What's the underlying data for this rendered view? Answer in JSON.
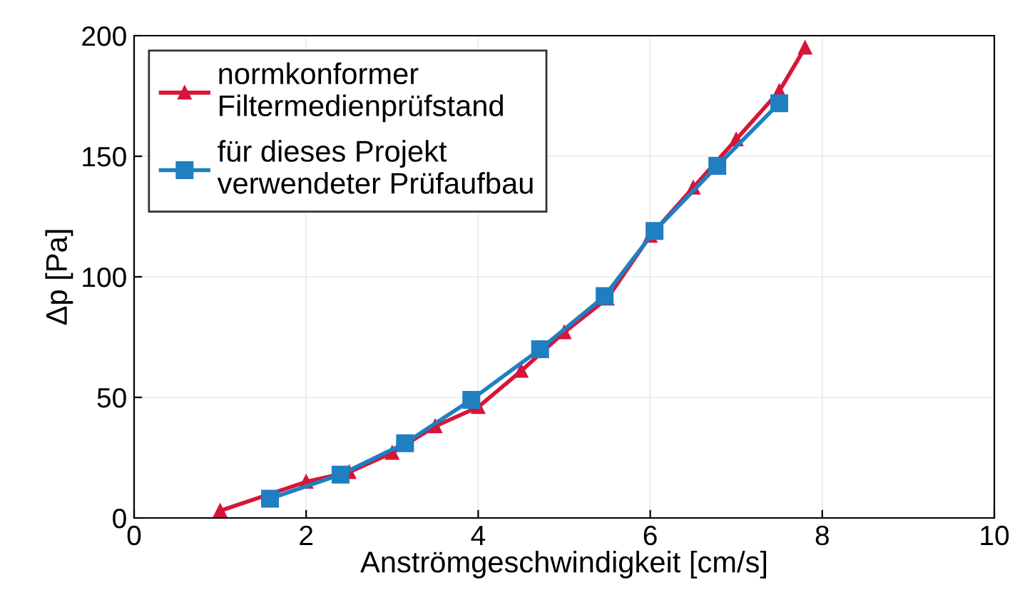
{
  "chart_data": {
    "type": "line",
    "xlabel": "Anströmgeschwindigkeit [cm/s]",
    "ylabel": "Δp [Pa]",
    "xlim": [
      0,
      10
    ],
    "xticks": [
      0,
      2,
      4,
      6,
      8,
      10
    ],
    "ylim": [
      0,
      200
    ],
    "yticks": [
      0,
      50,
      100,
      150,
      200
    ],
    "grid": true,
    "legend": "top left",
    "series": [
      {
        "name": "normkonformer\nFiltermedienprüfstand",
        "color": "#d6163a",
        "marker": "triangle",
        "x": [
          1.0,
          2.0,
          2.5,
          3.0,
          3.5,
          4.0,
          4.5,
          5.0,
          5.5,
          6.0,
          6.5,
          7.0,
          7.5,
          7.8
        ],
        "values": [
          3,
          15,
          19,
          27,
          38,
          46,
          61,
          77,
          91,
          117,
          137,
          157,
          177,
          195
        ]
      },
      {
        "name": "für dieses Projekt\nverwendeter Prüfaufbau",
        "color": "#1f7fc0",
        "marker": "square",
        "x": [
          1.58,
          2.4,
          3.15,
          3.92,
          4.72,
          5.47,
          6.05,
          6.78,
          7.5
        ],
        "values": [
          8,
          18,
          31,
          49,
          70,
          92,
          119,
          146,
          172
        ]
      }
    ]
  }
}
